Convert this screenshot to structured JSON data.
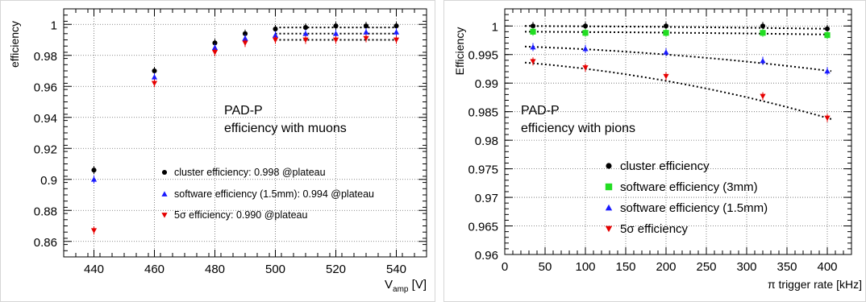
{
  "chart_data": [
    {
      "type": "scatter",
      "xlabel_main": "V",
      "xlabel_sub": "amp",
      "xlabel_unit": " [V]",
      "ylabel": "efficiency",
      "xlim": [
        430,
        550
      ],
      "ylim": [
        0.85,
        1.01
      ],
      "xticks": [
        440,
        460,
        480,
        500,
        520,
        540
      ],
      "yticks": [
        0.86,
        0.88,
        0.9,
        0.92,
        0.94,
        0.96,
        0.98,
        1
      ],
      "ytick_labels": [
        "0.86",
        "0.88",
        "0.9",
        "0.92",
        "0.94",
        "0.96",
        "0.98",
        "1"
      ],
      "grid": true,
      "annotation": [
        "PAD-P",
        "efficiency with muons"
      ],
      "x": [
        440,
        460,
        480,
        490,
        500,
        510,
        520,
        530,
        540
      ],
      "series": [
        {
          "name": "cluster efficiency: 0.998 @plateau",
          "marker": "circle",
          "color": "#000000",
          "values": [
            0.906,
            0.97,
            0.988,
            0.994,
            0.997,
            0.998,
            0.999,
            0.999,
            0.999
          ],
          "plateau": 0.998
        },
        {
          "name": "software efficiency (1.5mm): 0.994 @plateau",
          "marker": "triangle-up",
          "color": "#1a1aff",
          "values": [
            0.9,
            0.966,
            0.985,
            0.991,
            0.993,
            0.994,
            0.994,
            0.995,
            0.995
          ],
          "plateau": 0.994
        },
        {
          "name": "efficiency: 0.990 @plateau",
          "name_prefix": "5σ",
          "marker": "triangle-down",
          "color": "#e60000",
          "values": [
            0.867,
            0.962,
            0.982,
            0.988,
            0.99,
            0.99,
            0.99,
            0.991,
            0.99
          ],
          "plateau": 0.99
        }
      ],
      "plateau_x": [
        500,
        540
      ],
      "legend_position": "center"
    },
    {
      "type": "scatter",
      "xlabel_main": "π trigger rate [kHz]",
      "ylabel": "Efficiency",
      "xlim": [
        0,
        430
      ],
      "ylim": [
        0.96,
        1.003
      ],
      "xticks": [
        0,
        50,
        100,
        150,
        200,
        250,
        300,
        350,
        400
      ],
      "yticks": [
        0.96,
        0.965,
        0.97,
        0.975,
        0.98,
        0.985,
        0.99,
        0.995,
        1
      ],
      "ytick_labels": [
        "0.96",
        "0.965",
        "0.97",
        "0.975",
        "0.98",
        "0.985",
        "0.99",
        "0.995",
        "1"
      ],
      "grid": true,
      "annotation": [
        "PAD-P",
        "efficiency with pions"
      ],
      "x": [
        35,
        100,
        200,
        320,
        400
      ],
      "series": [
        {
          "name": "cluster efficiency",
          "marker": "circle",
          "color": "#000000",
          "values": [
            1.0,
            1.0,
            1.0,
            1.0,
            0.9995
          ]
        },
        {
          "name": "software efficiency (3mm)",
          "marker": "square",
          "color": "#22dd22",
          "values": [
            0.999,
            0.9988,
            0.9988,
            0.9988,
            0.9984
          ]
        },
        {
          "name": "software efficiency (1.5mm)",
          "marker": "triangle-up",
          "color": "#1a1aff",
          "values": [
            0.9963,
            0.996,
            0.9954,
            0.9939,
            0.9921
          ]
        },
        {
          "name": "efficiency",
          "name_prefix": "5σ",
          "marker": "triangle-down",
          "color": "#e60000",
          "values": [
            0.9938,
            0.9927,
            0.9912,
            0.9877,
            0.9839
          ]
        }
      ],
      "fits": [
        {
          "y0": 1.0,
          "y1": 0.9995
        },
        {
          "y0": 0.999,
          "y1": 0.9985
        },
        {
          "y0": 0.9964,
          "y1": 0.9921
        },
        {
          "y0": 0.9936,
          "y1": 0.9837
        }
      ],
      "fit_x": [
        25,
        405
      ],
      "legend_position": "center"
    }
  ]
}
